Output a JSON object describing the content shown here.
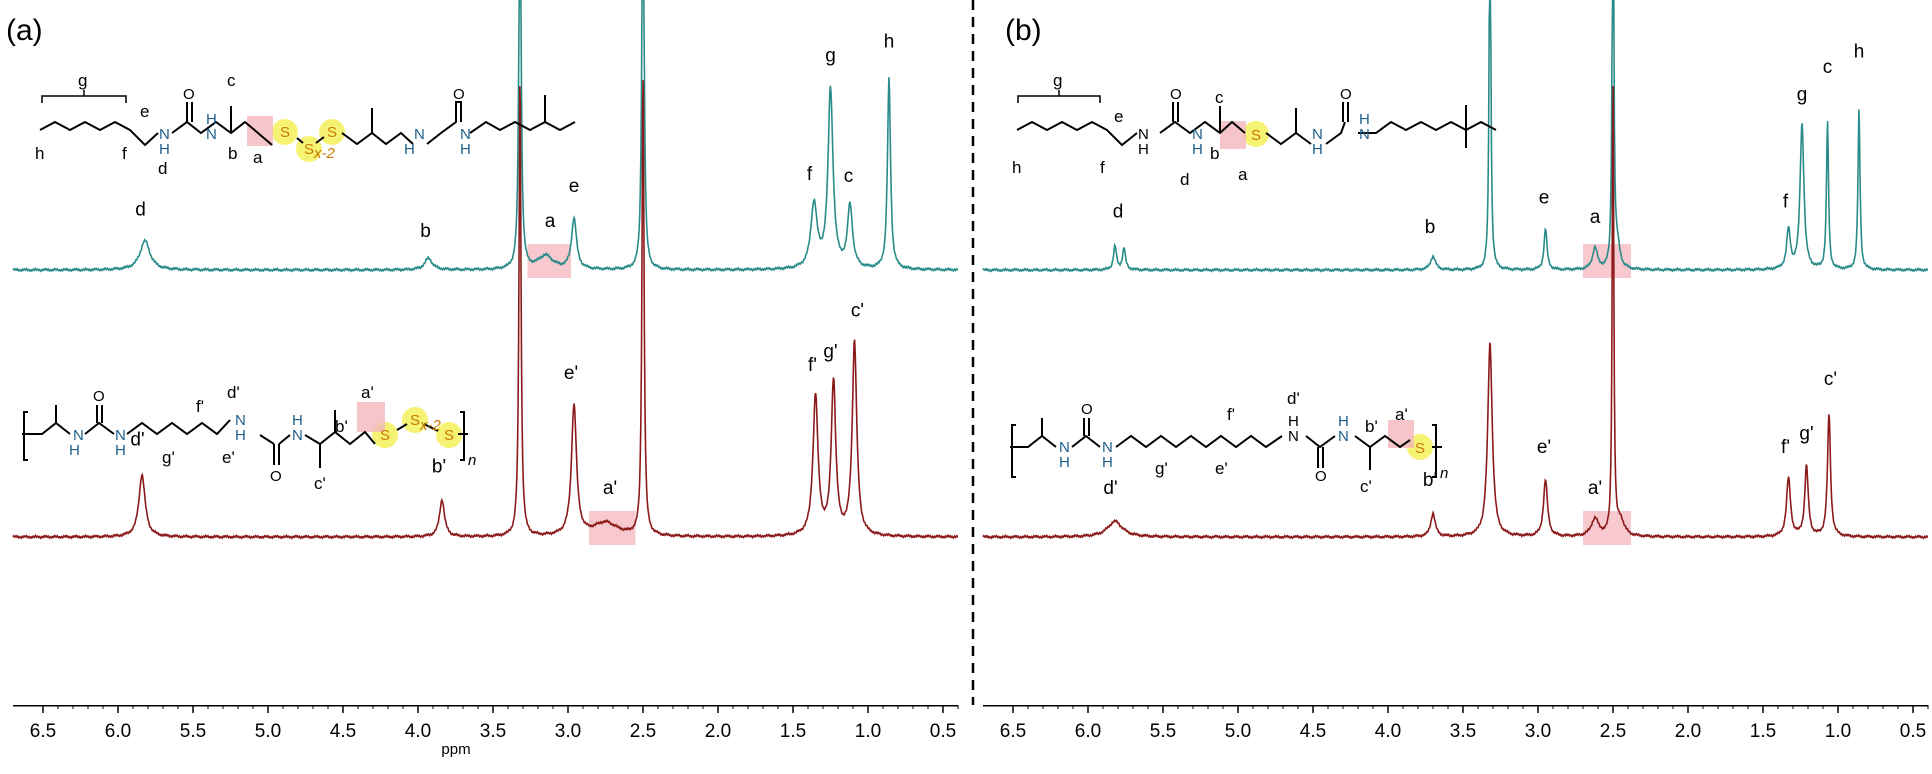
{
  "colors": {
    "top_trace": "#2a8c8a",
    "bottom_trace": "#8b1a1a",
    "highlight": "#f4b6bd",
    "sulfur_glow": "#f5f05a",
    "nh_blue": "#1f5f8b",
    "sulfur_text": "#c87a00"
  },
  "axis": {
    "xlabel": "ppm"
  },
  "chart_data": [
    {
      "panel": "(a)",
      "type": "line",
      "xlabel": "ppm",
      "xlim": [
        6.7,
        0.4
      ],
      "xticks": [
        "6.5",
        "6.0",
        "5.5",
        "5.0",
        "4.5",
        "4.0",
        "3.5",
        "3.0",
        "2.5",
        "2.0",
        "1.5",
        "1.0",
        "0.5"
      ],
      "grid": false,
      "series": [
        {
          "peaks": [
            [
              5.82,
              0.15,
              0.04
            ],
            [
              3.93,
              0.06,
              0.03
            ],
            [
              3.32,
              2.4,
              0.008
            ],
            [
              3.15,
              0.07,
              0.06
            ],
            [
              2.96,
              0.26,
              0.02
            ],
            [
              2.5,
              2.4,
              0.008
            ],
            [
              1.36,
              0.33,
              0.025
            ],
            [
              1.25,
              0.92,
              0.02
            ],
            [
              1.12,
              0.32,
              0.02
            ],
            [
              0.86,
              0.98,
              0.012
            ]
          ],
          "labels": [
            {
              "text": "d",
              "x": 5.85,
              "h": 0.26
            },
            {
              "text": "b",
              "x": 3.95,
              "h": 0.15
            },
            {
              "text": "a",
              "x": 3.12,
              "h": 0.2
            },
            {
              "text": "e",
              "x": 2.96,
              "h": 0.38
            },
            {
              "text": "f",
              "x": 1.39,
              "h": 0.44
            },
            {
              "text": "g",
              "x": 1.25,
              "h": 1.05
            },
            {
              "text": "c",
              "x": 1.13,
              "h": 0.43
            },
            {
              "text": "h",
              "x": 0.86,
              "h": 1.12
            }
          ],
          "highlights": [
            [
              3.27,
              2.98
            ]
          ]
        },
        {
          "peaks": [
            [
              5.84,
              0.32,
              0.025
            ],
            [
              3.84,
              0.19,
              0.02
            ],
            [
              3.32,
              2.4,
              0.008
            ],
            [
              2.96,
              0.67,
              0.02
            ],
            [
              2.75,
              0.07,
              0.1
            ],
            [
              2.5,
              2.4,
              0.008
            ],
            [
              1.35,
              0.72,
              0.02
            ],
            [
              1.23,
              0.79,
              0.018
            ],
            [
              1.09,
              1.0,
              0.018
            ]
          ],
          "labels": [
            {
              "text": "d'",
              "x": 5.87,
              "h": 0.45
            },
            {
              "text": "b'",
              "x": 3.86,
              "h": 0.31
            },
            {
              "text": "e'",
              "x": 2.98,
              "h": 0.79
            },
            {
              "text": "a'",
              "x": 2.72,
              "h": 0.2
            },
            {
              "text": "f'",
              "x": 1.37,
              "h": 0.83
            },
            {
              "text": "g'",
              "x": 1.25,
              "h": 0.9
            },
            {
              "text": "c'",
              "x": 1.07,
              "h": 1.11
            }
          ],
          "highlights": [
            [
              2.86,
              2.55
            ]
          ]
        }
      ]
    },
    {
      "panel": "(b)",
      "type": "line",
      "xlabel": "",
      "xlim": [
        6.7,
        0.4
      ],
      "xticks": [
        "6.5",
        "6.0",
        "5.5",
        "5.0",
        "4.5",
        "4.0",
        "3.5",
        "3.0",
        "2.5",
        "2.0",
        "1.5",
        "1.0",
        "0.5"
      ],
      "grid": false,
      "series": [
        {
          "peaks": [
            [
              5.82,
              0.12,
              0.012
            ],
            [
              5.76,
              0.11,
              0.012
            ],
            [
              3.7,
              0.07,
              0.02
            ],
            [
              3.32,
              2.4,
              0.006
            ],
            [
              2.95,
              0.21,
              0.012
            ],
            [
              2.62,
              0.11,
              0.02
            ],
            [
              2.47,
              0.11,
              0.02
            ],
            [
              2.5,
              2.4,
              0.006
            ],
            [
              1.33,
              0.2,
              0.015
            ],
            [
              1.24,
              0.75,
              0.015
            ],
            [
              1.07,
              0.76,
              0.008
            ],
            [
              0.86,
              0.82,
              0.008
            ]
          ],
          "labels": [
            {
              "text": "d",
              "x": 5.8,
              "h": 0.25
            },
            {
              "text": "b",
              "x": 3.72,
              "h": 0.17
            },
            {
              "text": "e",
              "x": 2.96,
              "h": 0.32
            },
            {
              "text": "a",
              "x": 2.62,
              "h": 0.22
            },
            {
              "text": "f",
              "x": 1.35,
              "h": 0.3
            },
            {
              "text": "g",
              "x": 1.24,
              "h": 0.85
            },
            {
              "text": "c",
              "x": 1.07,
              "h": 0.99
            },
            {
              "text": "h",
              "x": 0.86,
              "h": 1.07
            }
          ],
          "highlights": [
            [
              2.7,
              2.38
            ]
          ]
        },
        {
          "peaks": [
            [
              5.82,
              0.08,
              0.06
            ],
            [
              3.7,
              0.12,
              0.018
            ],
            [
              3.32,
              1.0,
              0.018
            ],
            [
              2.95,
              0.29,
              0.016
            ],
            [
              2.62,
              0.09,
              0.03
            ],
            [
              2.45,
              0.08,
              0.03
            ],
            [
              2.5,
              2.4,
              0.006
            ],
            [
              1.33,
              0.3,
              0.016
            ],
            [
              1.21,
              0.36,
              0.014
            ],
            [
              1.06,
              0.63,
              0.012
            ]
          ],
          "labels": [
            {
              "text": "d'",
              "x": 5.85,
              "h": 0.2
            },
            {
              "text": "b'",
              "x": 3.72,
              "h": 0.24
            },
            {
              "text": "e'",
              "x": 2.96,
              "h": 0.41
            },
            {
              "text": "a'",
              "x": 2.62,
              "h": 0.2
            },
            {
              "text": "f'",
              "x": 1.35,
              "h": 0.41
            },
            {
              "text": "g'",
              "x": 1.21,
              "h": 0.48
            },
            {
              "text": "c'",
              "x": 1.05,
              "h": 0.76
            }
          ],
          "highlights": [
            [
              2.7,
              2.38
            ]
          ]
        }
      ]
    }
  ],
  "structures": {
    "a_top": {
      "atoms": [
        "N",
        "O",
        "N",
        "S",
        "S",
        "S",
        "N",
        "O",
        "N",
        "H",
        "H",
        "H",
        "H"
      ],
      "sulfur_subscript": "x-2",
      "labels": [
        "g",
        "e",
        "c",
        "h",
        "f",
        "d",
        "b",
        "a"
      ]
    },
    "a_bottom": {
      "atoms": [
        "N",
        "O",
        "N",
        "N",
        "O",
        "N",
        "S",
        "S",
        "S",
        "H",
        "H",
        "H",
        "H"
      ],
      "sulfur_subscript": "x-2",
      "repeat": "n",
      "labels": [
        "d'",
        "f'",
        "a'",
        "b'",
        "g'",
        "e'",
        "c'"
      ]
    },
    "b_top": {
      "atoms": [
        "N",
        "O",
        "N",
        "S",
        "N",
        "O",
        "N",
        "H",
        "H",
        "H",
        "H"
      ],
      "labels": [
        "g",
        "e",
        "c",
        "h",
        "f",
        "d",
        "b",
        "a"
      ]
    },
    "b_bottom": {
      "atoms": [
        "N",
        "O",
        "N",
        "N",
        "O",
        "N",
        "S",
        "H",
        "H",
        "H",
        "H"
      ],
      "repeat": "n",
      "labels": [
        "d'",
        "f'",
        "a'",
        "b'",
        "g'",
        "e'",
        "c'"
      ]
    }
  }
}
